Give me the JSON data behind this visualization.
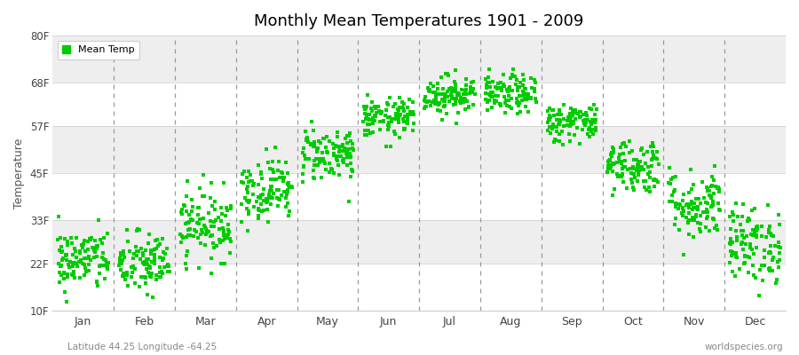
{
  "title": "Monthly Mean Temperatures 1901 - 2009",
  "ylabel": "Temperature",
  "xlabel_months": [
    "Jan",
    "Feb",
    "Mar",
    "Apr",
    "May",
    "Jun",
    "Jul",
    "Aug",
    "Sep",
    "Oct",
    "Nov",
    "Dec"
  ],
  "ytick_values": [
    10,
    22,
    33,
    45,
    57,
    68,
    80
  ],
  "ytick_labels": [
    "10F",
    "22F",
    "33F",
    "45F",
    "57F",
    "68F",
    "80F"
  ],
  "ylim": [
    10,
    80
  ],
  "xlim": [
    0,
    12
  ],
  "marker_color": "#00cc00",
  "marker": "s",
  "marker_size": 2.5,
  "bg_color": "#ffffff",
  "bg_band_even": "#ffffff",
  "bg_band_odd": "#eeeeee",
  "vline_color": "#999999",
  "legend_label": "Mean Temp",
  "bottom_left": "Latitude 44.25 Longitude -64.25",
  "bottom_right": "worldspecies.org",
  "monthly_means": [
    23,
    22,
    32,
    41,
    50,
    59,
    65,
    65,
    58,
    47,
    37,
    27
  ],
  "monthly_stds": [
    4.0,
    4.0,
    4.5,
    4.0,
    3.5,
    2.5,
    2.5,
    2.5,
    2.5,
    3.5,
    4.5,
    5.0
  ],
  "n_points": 109,
  "seed": 42
}
